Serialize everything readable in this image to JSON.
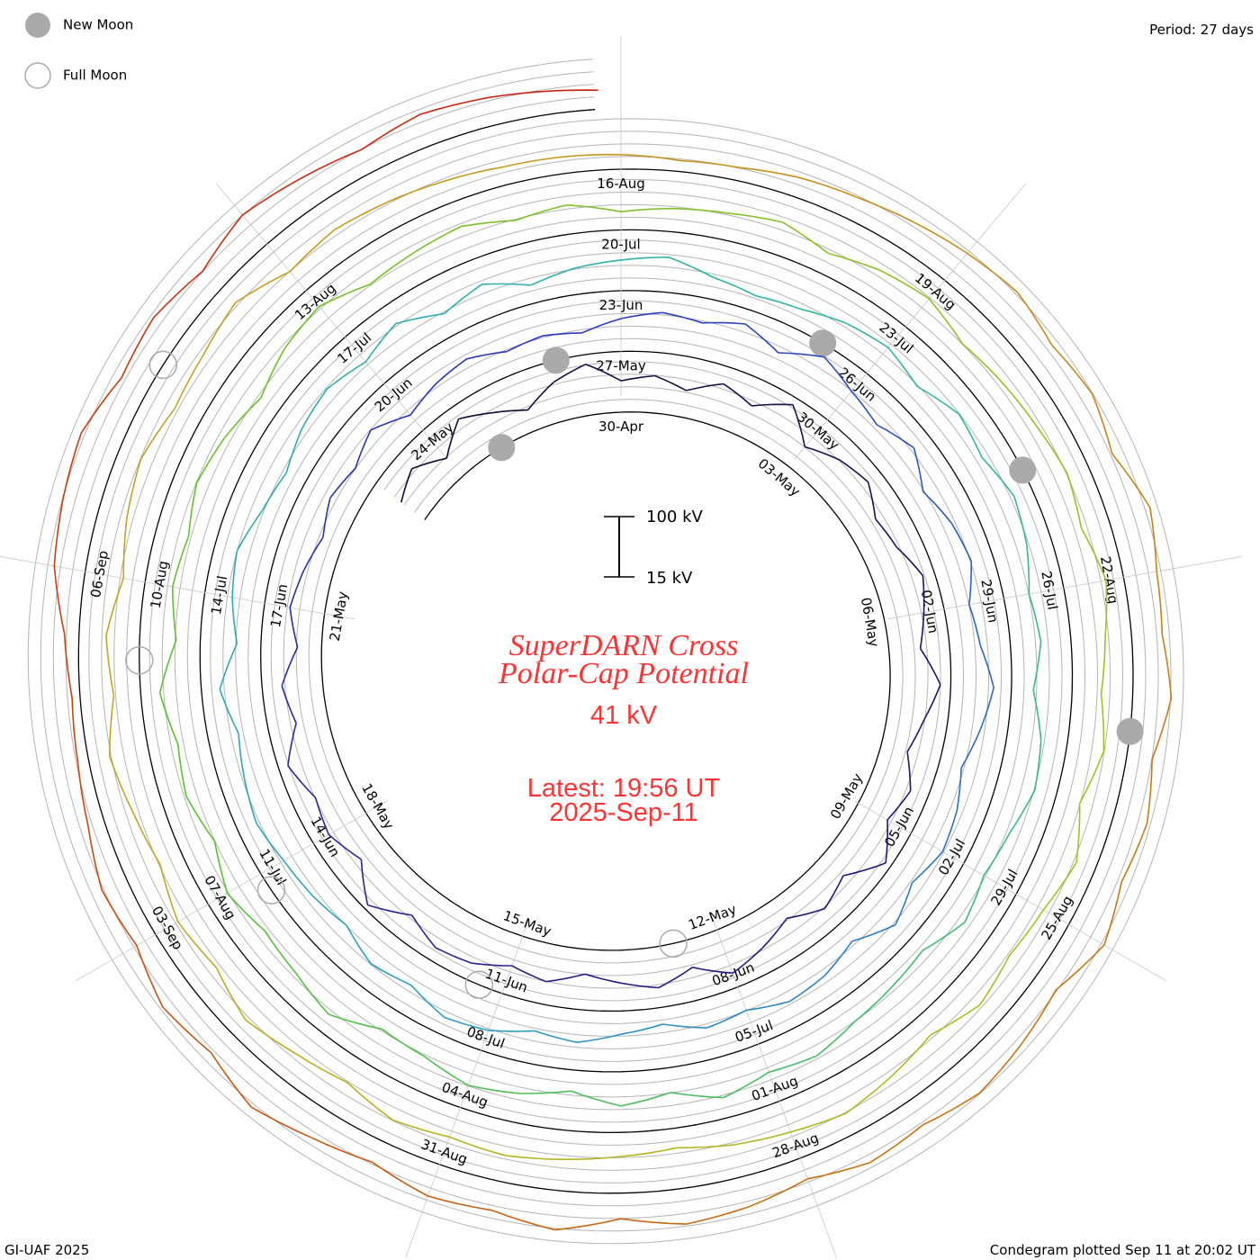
{
  "chart_data": {
    "type": "line",
    "subtype": "condegram-spiral",
    "title_line1": "SuperDARN Cross",
    "title_line2": "Polar-Cap Potential",
    "current_value": "41 kV",
    "latest_time": "Latest: 19:56 UT",
    "latest_date": "2025-Sep-11",
    "period": "Period: 27 days",
    "period_days": 27,
    "units": "kV",
    "scale_top": "100 kV",
    "scale_bottom": "15 kV",
    "scale_range": [
      15,
      100
    ],
    "legend": [
      {
        "label": "New Moon",
        "marker": "filled-circle",
        "color": "#aaaaaa"
      },
      {
        "label": "Full Moon",
        "marker": "open-circle",
        "color": "#aaaaaa"
      }
    ],
    "footer_left": "GI-UAF 2025",
    "footer_right": "Condegram plotted Sep 11 at 20:02 UT",
    "date_labels": [
      "30-Apr",
      "03-May",
      "06-May",
      "09-May",
      "12-May",
      "15-May",
      "18-May",
      "21-May",
      "24-May",
      "27-May",
      "30-May",
      "02-Jun",
      "05-Jun",
      "08-Jun",
      "11-Jun",
      "14-Jun",
      "17-Jun",
      "20-Jun",
      "23-Jun",
      "26-Jun",
      "29-Jun",
      "02-Jul",
      "05-Jul",
      "08-Jul",
      "11-Jul",
      "14-Jul",
      "17-Jul",
      "20-Jul",
      "23-Jul",
      "26-Jul",
      "29-Jul",
      "01-Aug",
      "04-Aug",
      "07-Aug",
      "10-Aug",
      "13-Aug",
      "16-Aug",
      "19-Aug",
      "22-Aug",
      "25-Aug",
      "28-Aug",
      "31-Aug",
      "03-Sep",
      "06-Sep"
    ],
    "date_label_step_days": 3,
    "new_moon_days_since_30Apr": [
      -2.15,
      26.1,
      56.4,
      85.8,
      115.3
    ],
    "full_moon_days_since_30Apr": [
      12.7,
      42.3,
      71.8,
      101.3,
      130.75
    ],
    "series_start_days_since_30Apr": -4,
    "series_step_days": 0.5,
    "values_kV": [
      55,
      72,
      48,
      80,
      62,
      45,
      70,
      85,
      58,
      66,
      52,
      74,
      60,
      88,
      50,
      68,
      77,
      56,
      63,
      82,
      70,
      58,
      84,
      66,
      52,
      73,
      61,
      90,
      55,
      69,
      47,
      64,
      78,
      53,
      71,
      60,
      49,
      67,
      58,
      75,
      80,
      62,
      92,
      57,
      74,
      66,
      85,
      59,
      71,
      48,
      63,
      55,
      44,
      58,
      50,
      66,
      42,
      54,
      61,
      47,
      52,
      45,
      60,
      70,
      64,
      78,
      58,
      83,
      66,
      55,
      72,
      48,
      62,
      68,
      50,
      57,
      74,
      61,
      46,
      59,
      65,
      52,
      70,
      44,
      58,
      63,
      49,
      55,
      38,
      47,
      60,
      53,
      69,
      75,
      58,
      66,
      49,
      57,
      62,
      71,
      64,
      56,
      73,
      48,
      60,
      67,
      52,
      44,
      58,
      65,
      54,
      70,
      47,
      62,
      40,
      51,
      57,
      63,
      45,
      36,
      42,
      55,
      61,
      48,
      66,
      58,
      72,
      64,
      50,
      57,
      45,
      62,
      68,
      54,
      47,
      59,
      38,
      44,
      50,
      63,
      56,
      70,
      49,
      62,
      44,
      58,
      66,
      52,
      47,
      73,
      61,
      55,
      68,
      50,
      64,
      57,
      72,
      48,
      60,
      53,
      66,
      58,
      45,
      62,
      70,
      51,
      57,
      63,
      48,
      55,
      40,
      47,
      52,
      60,
      44,
      58,
      65,
      50,
      56,
      61,
      68,
      59,
      74,
      62,
      55,
      66,
      49,
      71,
      58,
      52,
      63,
      45,
      57,
      68,
      60,
      53,
      42,
      48,
      55,
      62,
      58,
      66,
      51,
      60,
      72,
      55,
      63,
      48,
      57,
      69,
      52,
      61,
      45,
      58,
      66,
      54,
      60,
      71,
      49,
      57,
      52,
      46,
      40,
      38,
      35,
      30,
      33,
      42,
      47,
      55,
      63,
      70,
      58,
      66,
      52,
      74,
      61,
      57,
      68,
      50,
      62,
      55,
      71,
      48,
      58,
      66,
      53,
      60,
      45,
      57,
      64,
      50,
      69,
      56,
      61,
      47,
      58,
      72,
      54,
      63,
      45,
      52,
      38,
      30,
      26,
      35,
      58,
      66,
      72,
      55,
      62,
      50,
      67,
      58,
      49,
      60,
      54,
      46
    ],
    "latest_point": {
      "days_since_30Apr": 134.83,
      "value_kV": 41
    },
    "color_ramp": [
      "#14082e",
      "#241a7a",
      "#2e3cc0",
      "#2f9fc0",
      "#30b8a0",
      "#5cc030",
      "#a8c020",
      "#c8a020",
      "#c87010",
      "#c82010"
    ],
    "title_color": "#ff3333"
  }
}
